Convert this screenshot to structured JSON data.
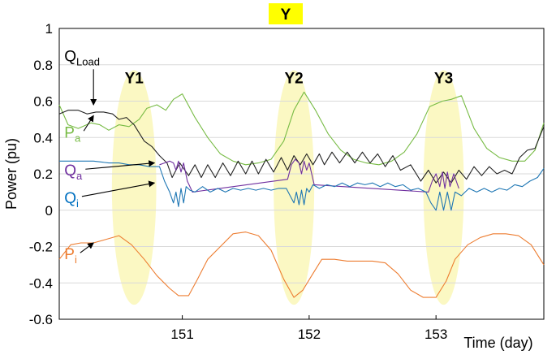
{
  "chart_data": {
    "type": "line",
    "title": "Y",
    "xlabel": "Time (day)",
    "ylabel": "Power (pu)",
    "xlim": [
      150.03,
      153.85
    ],
    "ylim": [
      -0.6,
      1
    ],
    "xticks": [
      {
        "value": 151,
        "label": "151"
      },
      {
        "value": 152,
        "label": "152"
      },
      {
        "value": 153,
        "label": "153"
      }
    ],
    "yticks": [
      {
        "value": 1,
        "label": "1"
      },
      {
        "value": 0.8,
        "label": "0.8"
      },
      {
        "value": 0.6,
        "label": "0.6"
      },
      {
        "value": 0.4,
        "label": "0.4"
      },
      {
        "value": 0.2,
        "label": "0.2"
      },
      {
        "value": 0,
        "label": "0"
      },
      {
        "value": -0.2,
        "label": "-0.2"
      },
      {
        "value": -0.4,
        "label": "-0.4"
      },
      {
        "value": -0.6,
        "label": "-0.6"
      }
    ],
    "grid": "horizontal",
    "regions": [
      {
        "label": "Y1",
        "x_center": 150.62,
        "x_halfwidth": 0.175,
        "y_low": -0.52,
        "y_high": 0.77
      },
      {
        "label": "Y2",
        "x_center": 151.88,
        "x_halfwidth": 0.16,
        "y_low": -0.52,
        "y_high": 0.77
      },
      {
        "label": "Y3",
        "x_center": 153.06,
        "x_halfwidth": 0.16,
        "y_low": -0.52,
        "y_high": 0.77
      }
    ],
    "annotations": [
      {
        "main": "Q",
        "sub": "Load",
        "color": "#000000",
        "x": 150.07,
        "y": 0.82,
        "arrow_to": [
          150.3,
          0.58
        ]
      },
      {
        "main": "P",
        "sub": "a",
        "color": "#77bb44",
        "x": 150.07,
        "y": 0.4,
        "arrow_to": [
          150.3,
          0.52
        ]
      },
      {
        "main": "Q",
        "sub": "a",
        "color": "#7030a0",
        "x": 150.07,
        "y": 0.19,
        "arrow_to": [
          150.78,
          0.26
        ]
      },
      {
        "main": "Q",
        "sub": "i",
        "color": "#0070c0",
        "x": 150.07,
        "y": 0.04,
        "arrow_to": [
          150.78,
          0.15
        ]
      },
      {
        "main": "P",
        "sub": "i",
        "color": "#ed7d31",
        "x": 150.07,
        "y": -0.27,
        "arrow_to": [
          150.3,
          -0.18
        ]
      }
    ],
    "series": [
      {
        "name": "Pa",
        "color": "#77bb44",
        "x": [
          150.03,
          150.1,
          150.18,
          150.28,
          150.35,
          150.42,
          150.5,
          150.58,
          150.66,
          150.72,
          150.8,
          150.87,
          150.93,
          151.0,
          151.1,
          151.2,
          151.3,
          151.4,
          151.5,
          151.6,
          151.7,
          151.8,
          151.88,
          151.96,
          152.05,
          152.15,
          152.25,
          152.35,
          152.45,
          152.55,
          152.65,
          152.75,
          152.85,
          152.95,
          153.05,
          153.12,
          153.2,
          153.3,
          153.4,
          153.5,
          153.6,
          153.7,
          153.78,
          153.85
        ],
        "y": [
          0.58,
          0.47,
          0.45,
          0.48,
          0.47,
          0.44,
          0.47,
          0.46,
          0.5,
          0.56,
          0.58,
          0.55,
          0.61,
          0.64,
          0.51,
          0.4,
          0.31,
          0.27,
          0.25,
          0.26,
          0.28,
          0.38,
          0.55,
          0.65,
          0.55,
          0.42,
          0.33,
          0.28,
          0.26,
          0.25,
          0.27,
          0.32,
          0.42,
          0.57,
          0.6,
          0.61,
          0.63,
          0.45,
          0.34,
          0.29,
          0.27,
          0.27,
          0.33,
          0.48
        ]
      },
      {
        "name": "QLoad",
        "color": "#222222",
        "x": [
          150.03,
          150.1,
          150.18,
          150.25,
          150.32,
          150.38,
          150.45,
          150.5,
          150.56,
          150.62,
          150.7,
          150.76,
          150.82,
          150.88,
          150.92,
          150.98,
          151.05,
          151.1,
          151.15,
          151.2,
          151.26,
          151.32,
          151.38,
          151.44,
          151.5,
          151.55,
          151.6,
          151.66,
          151.72,
          151.78,
          151.83,
          151.88,
          151.93,
          151.98,
          152.03,
          152.08,
          152.12,
          152.18,
          152.24,
          152.3,
          152.36,
          152.42,
          152.48,
          152.54,
          152.6,
          152.66,
          152.72,
          152.8,
          152.88,
          152.94,
          153.0,
          153.06,
          153.12,
          153.18,
          153.24,
          153.3,
          153.36,
          153.42,
          153.48,
          153.54,
          153.6,
          153.66,
          153.72,
          153.78,
          153.85
        ],
        "y": [
          0.53,
          0.55,
          0.55,
          0.53,
          0.54,
          0.54,
          0.53,
          0.5,
          0.51,
          0.47,
          0.38,
          0.35,
          0.3,
          0.26,
          0.18,
          0.26,
          0.19,
          0.25,
          0.18,
          0.25,
          0.18,
          0.26,
          0.19,
          0.27,
          0.2,
          0.27,
          0.2,
          0.28,
          0.21,
          0.29,
          0.22,
          0.3,
          0.25,
          0.31,
          0.25,
          0.31,
          0.25,
          0.32,
          0.26,
          0.32,
          0.26,
          0.32,
          0.26,
          0.31,
          0.24,
          0.3,
          0.22,
          0.25,
          0.16,
          0.22,
          0.15,
          0.21,
          0.15,
          0.22,
          0.17,
          0.24,
          0.19,
          0.24,
          0.2,
          0.22,
          0.2,
          0.29,
          0.33,
          0.34,
          0.46
        ]
      },
      {
        "name": "Qa",
        "color": "#7030a0",
        "x": [
          150.82,
          150.86,
          150.9,
          150.93,
          150.95,
          150.97,
          150.99,
          151.01,
          151.04,
          151.08,
          151.83,
          151.86,
          151.89,
          151.92,
          151.94,
          151.96,
          151.98,
          152.0,
          152.04,
          152.94,
          152.97,
          153.0,
          153.03,
          153.05,
          153.07,
          153.09,
          153.11,
          153.14,
          153.18
        ],
        "y": [
          0.25,
          0.26,
          0.27,
          0.26,
          0.22,
          0.27,
          0.21,
          0.26,
          0.16,
          0.1,
          0.17,
          0.25,
          0.28,
          0.26,
          0.2,
          0.27,
          0.22,
          0.26,
          0.14,
          0.1,
          0.16,
          0.2,
          0.13,
          0.21,
          0.12,
          0.21,
          0.13,
          0.2,
          0.12
        ]
      },
      {
        "name": "Qi",
        "color": "#1f77b4",
        "x": [
          150.03,
          150.15,
          150.3,
          150.42,
          150.5,
          150.58,
          150.66,
          150.74,
          150.82,
          150.86,
          150.9,
          150.93,
          150.95,
          150.97,
          150.99,
          151.01,
          151.03,
          151.06,
          151.1,
          151.16,
          151.22,
          151.28,
          151.34,
          151.4,
          151.46,
          151.52,
          151.58,
          151.64,
          151.7,
          151.76,
          151.82,
          151.85,
          151.88,
          151.9,
          151.92,
          151.94,
          151.96,
          151.98,
          152.0,
          152.03,
          152.08,
          152.14,
          152.2,
          152.26,
          152.32,
          152.38,
          152.44,
          152.5,
          152.56,
          152.62,
          152.68,
          152.74,
          152.8,
          152.86,
          152.92,
          152.96,
          153.0,
          153.03,
          153.06,
          153.09,
          153.12,
          153.15,
          153.2,
          153.26,
          153.32,
          153.38,
          153.44,
          153.5,
          153.56,
          153.62,
          153.68,
          153.74,
          153.8,
          153.85
        ],
        "y": [
          0.27,
          0.27,
          0.27,
          0.26,
          0.26,
          0.25,
          0.25,
          0.24,
          0.24,
          0.16,
          0.1,
          0.04,
          0.1,
          0.02,
          0.12,
          0.04,
          0.13,
          0.11,
          0.1,
          0.13,
          0.1,
          0.12,
          0.1,
          0.12,
          0.11,
          0.12,
          0.11,
          0.12,
          0.11,
          0.12,
          0.12,
          0.08,
          0.04,
          0.1,
          0.03,
          0.11,
          0.03,
          0.12,
          0.1,
          0.14,
          0.12,
          0.14,
          0.13,
          0.15,
          0.13,
          0.15,
          0.14,
          0.15,
          0.13,
          0.15,
          0.13,
          0.14,
          0.11,
          0.12,
          0.1,
          0.04,
          0.0,
          0.1,
          0.0,
          0.1,
          0.0,
          0.1,
          0.08,
          0.12,
          0.1,
          0.12,
          0.1,
          0.12,
          0.11,
          0.14,
          0.13,
          0.16,
          0.18,
          0.23
        ]
      },
      {
        "name": "Pi",
        "color": "#ed7d31",
        "x": [
          150.03,
          150.12,
          150.2,
          150.3,
          150.4,
          150.5,
          150.6,
          150.7,
          150.8,
          150.9,
          150.97,
          151.05,
          151.12,
          151.2,
          151.3,
          151.4,
          151.5,
          151.6,
          151.7,
          151.8,
          151.88,
          151.95,
          152.02,
          152.1,
          152.2,
          152.3,
          152.4,
          152.5,
          152.6,
          152.7,
          152.8,
          152.9,
          153.0,
          153.08,
          153.15,
          153.25,
          153.35,
          153.45,
          153.55,
          153.65,
          153.75,
          153.85
        ],
        "y": [
          -0.27,
          -0.19,
          -0.18,
          -0.18,
          -0.16,
          -0.14,
          -0.19,
          -0.27,
          -0.36,
          -0.43,
          -0.47,
          -0.47,
          -0.38,
          -0.27,
          -0.2,
          -0.13,
          -0.12,
          -0.14,
          -0.22,
          -0.38,
          -0.48,
          -0.44,
          -0.36,
          -0.27,
          -0.27,
          -0.28,
          -0.28,
          -0.28,
          -0.29,
          -0.35,
          -0.44,
          -0.48,
          -0.48,
          -0.39,
          -0.27,
          -0.19,
          -0.15,
          -0.13,
          -0.13,
          -0.14,
          -0.19,
          -0.3
        ]
      }
    ]
  }
}
